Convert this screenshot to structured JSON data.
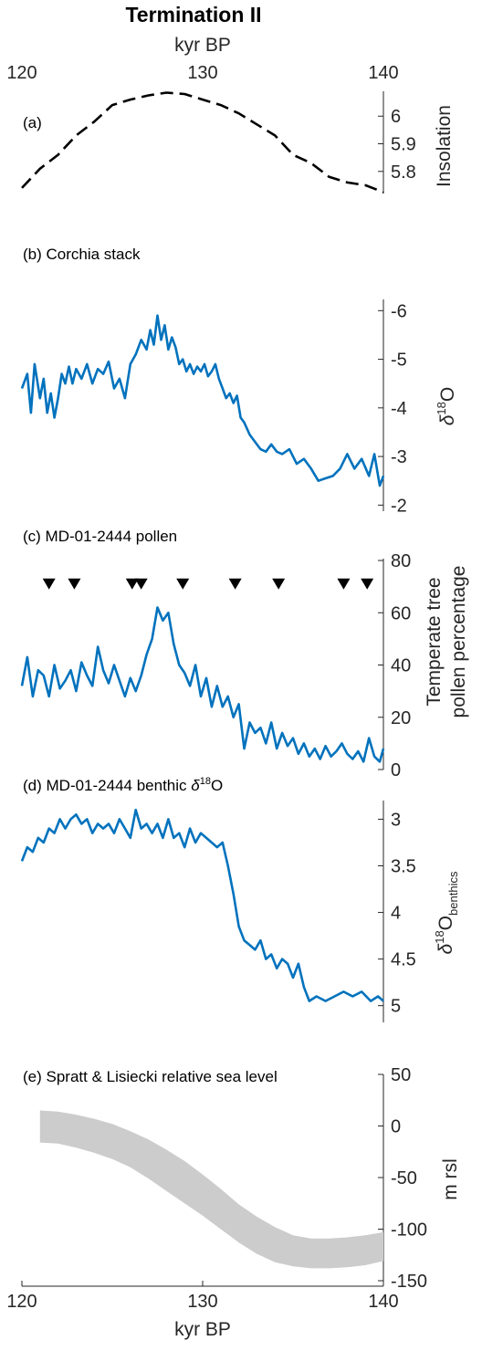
{
  "figure": {
    "title": "Termination II",
    "top_xlabel": "kyr BP",
    "bottom_xlabel": "kyr BP",
    "xlim": [
      120,
      140
    ],
    "xticks": [
      120,
      130,
      140
    ]
  },
  "chart_data": [
    {
      "type": "line",
      "panel_label": "(a)",
      "ylabel": "Insolation",
      "ylim": [
        5.72,
        6.09
      ],
      "y_reversed": false,
      "yticks": [
        5.8,
        5.9,
        6
      ],
      "ytick_labels": [
        "5.8",
        "5.9",
        "6"
      ],
      "line_style": "dashed",
      "color": "#000000",
      "series": [
        {
          "x": [
            120,
            121,
            122,
            123,
            124,
            125,
            126,
            127,
            128,
            129,
            130,
            131,
            132,
            133,
            134,
            135,
            136,
            137,
            138,
            139,
            140
          ],
          "y": [
            5.74,
            5.81,
            5.86,
            5.93,
            5.98,
            6.04,
            6.06,
            6.075,
            6.085,
            6.08,
            6.06,
            6.04,
            6.01,
            5.97,
            5.93,
            5.86,
            5.83,
            5.78,
            5.76,
            5.75,
            5.725
          ]
        }
      ]
    },
    {
      "type": "line",
      "panel_label": "(b) Corchia stack",
      "ylabel_main": "δ",
      "ylabel_sup": "18",
      "ylabel_rest": "O",
      "ylim": [
        -6.1,
        -1.95
      ],
      "y_reversed": true,
      "yticks": [
        -6,
        -5,
        -4,
        -3,
        -2
      ],
      "ytick_labels": [
        "-6",
        "-5",
        "-4",
        "-3",
        "-2"
      ],
      "color": "#0072BD",
      "series": [
        {
          "x": [
            120,
            120.3,
            120.5,
            120.7,
            121,
            121.2,
            121.4,
            121.6,
            121.8,
            122,
            122.2,
            122.4,
            122.6,
            122.8,
            123,
            123.3,
            123.6,
            123.9,
            124.2,
            124.5,
            124.8,
            125.1,
            125.4,
            125.7,
            126,
            126.3,
            126.6,
            126.9,
            127.1,
            127.3,
            127.5,
            127.7,
            127.9,
            128.1,
            128.3,
            128.5,
            128.7,
            128.9,
            129.1,
            129.3,
            129.5,
            129.7,
            129.9,
            130.1,
            130.3,
            130.5,
            130.7,
            130.9,
            131.1,
            131.3,
            131.5,
            131.7,
            131.9,
            132.1,
            132.3,
            132.6,
            132.9,
            133.2,
            133.5,
            133.8,
            134.1,
            134.4,
            134.8,
            135.2,
            135.6,
            136,
            136.4,
            136.8,
            137.2,
            137.6,
            138,
            138.4,
            138.8,
            139.2,
            139.5,
            139.8,
            140
          ],
          "y": [
            -4.4,
            -4.7,
            -3.9,
            -4.9,
            -4.2,
            -4.6,
            -3.9,
            -4.3,
            -3.8,
            -4.2,
            -4.7,
            -4.5,
            -4.85,
            -4.5,
            -4.8,
            -4.6,
            -4.9,
            -4.5,
            -4.8,
            -4.7,
            -4.95,
            -4.4,
            -4.6,
            -4.2,
            -4.9,
            -5.1,
            -5.4,
            -5.2,
            -5.6,
            -5.3,
            -5.9,
            -5.4,
            -5.7,
            -5.2,
            -5.45,
            -5.25,
            -4.9,
            -5.0,
            -4.75,
            -4.9,
            -4.7,
            -4.85,
            -4.75,
            -4.9,
            -4.65,
            -4.75,
            -4.9,
            -4.6,
            -4.4,
            -4.2,
            -4.3,
            -4.1,
            -4.25,
            -3.8,
            -3.7,
            -3.45,
            -3.3,
            -3.15,
            -3.1,
            -3.25,
            -3.1,
            -3.05,
            -3.15,
            -2.85,
            -2.95,
            -2.75,
            -2.5,
            -2.55,
            -2.6,
            -2.75,
            -3.05,
            -2.75,
            -2.95,
            -2.6,
            -3.05,
            -2.4,
            -2.6
          ]
        }
      ]
    },
    {
      "type": "line",
      "panel_label": "(c) MD-01-2444 pollen",
      "ylabel_line1": "Temperate tree",
      "ylabel_line2": "pollen percentage",
      "ylim": [
        0,
        80
      ],
      "y_reversed": false,
      "yticks": [
        0,
        20,
        40,
        60,
        80
      ],
      "ytick_labels": [
        "0",
        "20",
        "40",
        "60",
        "80"
      ],
      "color": "#0072BD",
      "markers_x": [
        121.5,
        122.9,
        126.1,
        126.6,
        128.9,
        131.8,
        134.2,
        137.8,
        139.1
      ],
      "markers_y": 71,
      "series": [
        {
          "x": [
            120,
            120.3,
            120.6,
            120.9,
            121.2,
            121.5,
            121.8,
            122.1,
            122.4,
            122.7,
            123,
            123.3,
            123.6,
            123.9,
            124.2,
            124.5,
            124.8,
            125.1,
            125.4,
            125.7,
            126,
            126.3,
            126.6,
            126.9,
            127.2,
            127.5,
            127.8,
            128.1,
            128.4,
            128.7,
            129,
            129.3,
            129.6,
            129.9,
            130.2,
            130.5,
            130.8,
            131.1,
            131.4,
            131.7,
            132,
            132.3,
            132.6,
            132.9,
            133.2,
            133.5,
            133.8,
            134.1,
            134.4,
            134.7,
            135,
            135.3,
            135.6,
            135.9,
            136.2,
            136.5,
            136.8,
            137.1,
            137.4,
            137.7,
            138,
            138.3,
            138.6,
            138.9,
            139.2,
            139.5,
            139.8,
            140
          ],
          "y": [
            32,
            43,
            28,
            38,
            36,
            28,
            40,
            31,
            34,
            38,
            30,
            41,
            36,
            32,
            47,
            38,
            33,
            40,
            34,
            28,
            35,
            30,
            36,
            44,
            50,
            62,
            57,
            60,
            48,
            40,
            37,
            32,
            40,
            28,
            35,
            24,
            32,
            24,
            28,
            20,
            25,
            8,
            18,
            14,
            16,
            10,
            18,
            8,
            14,
            9,
            12,
            6,
            10,
            5,
            8,
            4,
            9,
            5,
            7,
            10,
            6,
            4,
            7,
            3,
            12,
            5,
            3,
            8
          ]
        }
      ]
    },
    {
      "type": "line",
      "panel_label_pre": "(d) MD-01-2444 benthic ",
      "panel_label_delta": "δ",
      "panel_label_sup": "18",
      "panel_label_post": "O",
      "ylabel_main": "δ",
      "ylabel_sup": "18",
      "ylabel_mid": "O",
      "ylabel_sub": "benthics",
      "ylim": [
        2.8,
        5.15
      ],
      "y_reversed": true,
      "yticks": [
        3,
        3.5,
        4,
        4.5,
        5
      ],
      "ytick_labels": [
        "3",
        "3.5",
        "4",
        "4.5",
        "5"
      ],
      "color": "#0072BD",
      "series": [
        {
          "x": [
            120,
            120.3,
            120.6,
            120.9,
            121.2,
            121.5,
            121.8,
            122.1,
            122.4,
            122.7,
            123,
            123.3,
            123.6,
            123.9,
            124.2,
            124.5,
            124.8,
            125.1,
            125.4,
            125.7,
            126,
            126.3,
            126.6,
            126.9,
            127.2,
            127.5,
            127.8,
            128.1,
            128.4,
            128.7,
            129,
            129.3,
            129.6,
            129.9,
            130.2,
            130.5,
            130.8,
            131.1,
            131.4,
            131.7,
            132,
            132.3,
            132.6,
            132.9,
            133.2,
            133.5,
            133.8,
            134.1,
            134.4,
            134.7,
            135,
            135.3,
            135.6,
            135.9,
            136.3,
            136.8,
            137.3,
            137.8,
            138.3,
            138.8,
            139.3,
            139.7,
            140
          ],
          "y": [
            3.45,
            3.3,
            3.35,
            3.2,
            3.25,
            3.1,
            3.15,
            3.0,
            3.1,
            3.0,
            2.95,
            3.05,
            3.0,
            3.15,
            3.05,
            3.1,
            3.05,
            3.15,
            3.0,
            3.1,
            3.2,
            2.9,
            3.1,
            3.05,
            3.15,
            3.05,
            3.2,
            3.0,
            3.2,
            3.15,
            3.3,
            3.1,
            3.25,
            3.15,
            3.2,
            3.25,
            3.3,
            3.25,
            3.5,
            3.8,
            4.15,
            4.3,
            4.35,
            4.4,
            4.3,
            4.5,
            4.45,
            4.6,
            4.5,
            4.55,
            4.7,
            4.55,
            4.8,
            4.95,
            4.9,
            4.95,
            4.9,
            4.85,
            4.9,
            4.85,
            4.95,
            4.9,
            4.95
          ]
        }
      ]
    },
    {
      "type": "area",
      "panel_label": "(e) Spratt & Lisiecki relative sea level",
      "ylabel": "m rsl",
      "ylim": [
        -150,
        50
      ],
      "y_reversed": false,
      "yticks": [
        -150,
        -100,
        -50,
        0,
        50
      ],
      "ytick_labels": [
        "-150",
        "-100",
        "-50",
        "0",
        "50"
      ],
      "color": "#cccccc",
      "band": {
        "x": [
          121,
          122,
          123,
          124,
          125,
          126,
          127,
          128,
          129,
          130,
          131,
          132,
          133,
          134,
          135,
          136,
          137,
          138,
          139,
          140
        ],
        "upper": [
          15,
          14,
          11,
          7,
          2,
          -5,
          -13,
          -23,
          -34,
          -47,
          -61,
          -76,
          -88,
          -98,
          -106,
          -109,
          -109,
          -108,
          -106,
          -103
        ],
        "lower": [
          -16,
          -17,
          -21,
          -26,
          -32,
          -40,
          -51,
          -63,
          -75,
          -87,
          -100,
          -113,
          -124,
          -132,
          -136,
          -138,
          -138,
          -137,
          -135,
          -131
        ]
      }
    }
  ]
}
